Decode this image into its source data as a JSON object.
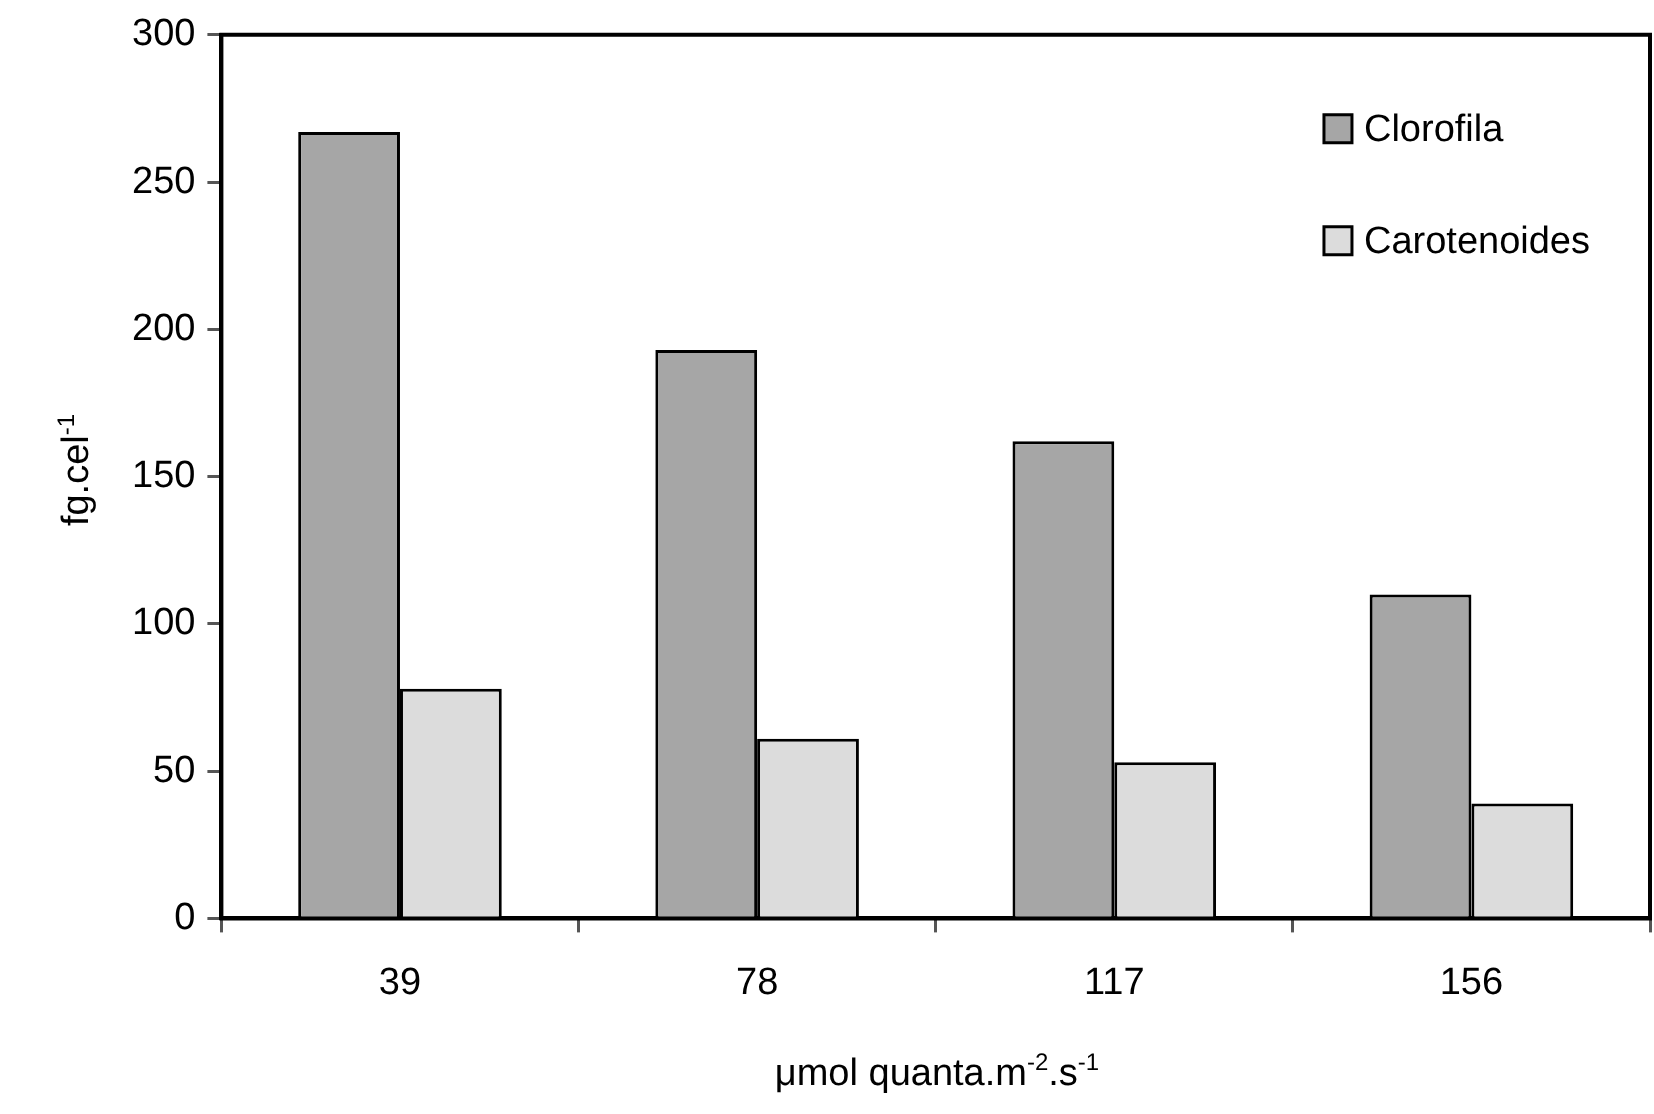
{
  "chart_data": {
    "type": "bar",
    "xlabel": "μmol quanta.m$^{-2}$.s$^{-1}$",
    "ylabel": "fg.cel$^{-1}$",
    "categories": [
      "39",
      "78",
      "117",
      "156"
    ],
    "series": [
      {
        "name": "Clorofila",
        "color": "#a6a6a6",
        "values": [
          267,
          193,
          162,
          110
        ]
      },
      {
        "name": "Carotenoides",
        "color": "#dcdcdc",
        "values": [
          78,
          61,
          53,
          39
        ]
      }
    ],
    "ylim": [
      0,
      300
    ],
    "yticks": [
      0,
      50,
      100,
      150,
      200,
      250,
      300
    ],
    "grid": false,
    "legend": "top right"
  }
}
